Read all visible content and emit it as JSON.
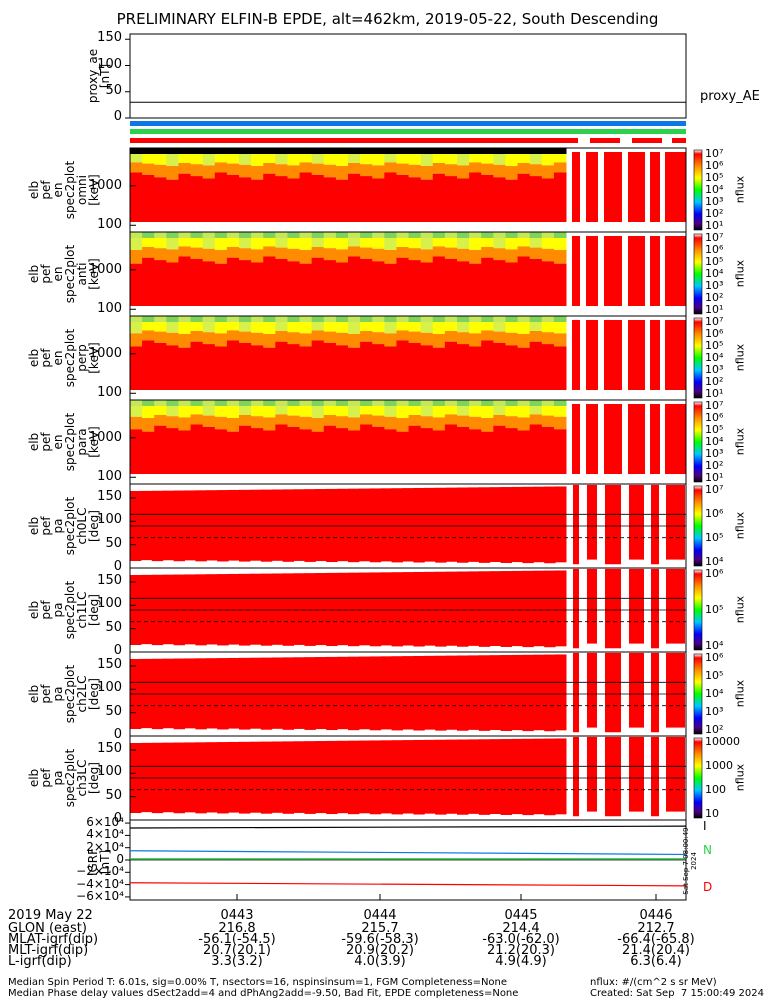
{
  "title": "PRELIMINARY ELFIN-B EPDE, alt=462km, 2019-05-22, South Descending",
  "colors": {
    "red": "#ff0000",
    "orange": "#ff8c00",
    "yellow": "#ffff00",
    "green": "#2bd14a",
    "blue": "#0a78e8",
    "black": "#000000"
  },
  "proxy_ae": {
    "ylabel_lines": [
      "proxy_ae",
      "[nT]"
    ],
    "yticks": [
      "150",
      "100",
      "50",
      "0"
    ],
    "legend": "proxy_AE",
    "ylim": [
      0,
      160
    ],
    "value": 30
  },
  "status_bars": [
    "blue",
    "green",
    "red"
  ],
  "energy_panels": [
    {
      "ylabel_lines": [
        "elb",
        "pef",
        "en",
        "spec2plot",
        "omni",
        "[keV]"
      ],
      "yticks": [
        "1000",
        "100"
      ],
      "cb_ticks": [
        "10⁷",
        "10⁶",
        "10⁵",
        "10⁴",
        "10³",
        "10²",
        "10¹"
      ],
      "cb_label": "nflux"
    },
    {
      "ylabel_lines": [
        "elb",
        "pef",
        "en",
        "spec2plot",
        "anti",
        "[keV]"
      ],
      "yticks": [
        "1000",
        "100"
      ],
      "cb_ticks": [
        "10⁷",
        "10⁶",
        "10⁵",
        "10⁴",
        "10³",
        "10²",
        "10¹"
      ],
      "cb_label": "nflux"
    },
    {
      "ylabel_lines": [
        "elb",
        "pef",
        "en",
        "spec2plot",
        "perp",
        "[keV]"
      ],
      "yticks": [
        "1000",
        "100"
      ],
      "cb_ticks": [
        "10⁷",
        "10⁶",
        "10⁵",
        "10⁴",
        "10³",
        "10²",
        "10¹"
      ],
      "cb_label": "nflux"
    },
    {
      "ylabel_lines": [
        "elb",
        "pef",
        "en",
        "spec2plot",
        "para",
        "[keV]"
      ],
      "yticks": [
        "1000",
        "100"
      ],
      "cb_ticks": [
        "10⁷",
        "10⁶",
        "10⁵",
        "10⁴",
        "10³",
        "10²",
        "10¹"
      ],
      "cb_label": "nflux"
    }
  ],
  "pa_panels": [
    {
      "ylabel_lines": [
        "elb",
        "pef",
        "pa",
        "spec2plot",
        "ch0LC",
        "[deg]"
      ],
      "yticks": [
        "150",
        "100",
        "50",
        "0"
      ],
      "cb_ticks": [
        "10⁷",
        "10⁶",
        "10⁵",
        "10⁴"
      ],
      "cb_label": "nflux"
    },
    {
      "ylabel_lines": [
        "elb",
        "pef",
        "pa",
        "spec2plot",
        "ch1LC",
        "[deg]"
      ],
      "yticks": [
        "150",
        "100",
        "50",
        "0"
      ],
      "cb_ticks": [
        "10⁶",
        "10⁵",
        "10⁴"
      ],
      "cb_label": "nflux"
    },
    {
      "ylabel_lines": [
        "elb",
        "pef",
        "pa",
        "spec2plot",
        "ch2LC",
        "[deg]"
      ],
      "yticks": [
        "150",
        "100",
        "50",
        "0"
      ],
      "cb_ticks": [
        "10⁶",
        "10⁵",
        "10⁴",
        "10³",
        "10²"
      ],
      "cb_label": "nflux"
    },
    {
      "ylabel_lines": [
        "elb",
        "pef",
        "pa",
        "spec2plot",
        "ch3LC",
        "[deg]"
      ],
      "yticks": [
        "150",
        "100",
        "50",
        "0"
      ],
      "cb_ticks": [
        "10000",
        "1000",
        "100",
        "10"
      ],
      "cb_label": "nflux"
    }
  ],
  "igrf": {
    "ylabel_lines": [
      "IGRF",
      "[nT]"
    ],
    "yticks": [
      "6×10⁴",
      "4×10⁴",
      "2×10⁴",
      "0",
      "−2×10⁴",
      "−4×10⁴",
      "−6×10⁴"
    ],
    "legend": [
      "I",
      "N",
      "D"
    ],
    "stamp": "Sat Sep  7 08:00:49 2024"
  },
  "chart_data": {
    "type": "heatmap",
    "title": "PRELIMINARY ELFIN-B EPDE, alt=462km, 2019-05-22, South Descending",
    "x_tick_labels": [
      "0443",
      "0444",
      "0445",
      "0446"
    ],
    "energy_ylim_keV": [
      60,
      7000
    ],
    "pa_ylim_deg": [
      0,
      180
    ],
    "colorbar_label": "nflux",
    "igrf_series": [
      {
        "name": "I",
        "start": 52000,
        "end": 55000
      },
      {
        "name": "N",
        "start": 15000,
        "end": 9000
      },
      {
        "name": "D",
        "start": -37000,
        "end": -42000
      }
    ]
  },
  "footer": {
    "date": "2019 May 22",
    "rows": [
      {
        "label": "GLON (east)",
        "values": [
          "216.8",
          "215.7",
          "214.4",
          "212.7"
        ]
      },
      {
        "label": "MLAT-igrf(dip)",
        "values": [
          "-56.1(-54.5)",
          "-59.6(-58.3)",
          "-63.0(-62.0)",
          "-66.4(-65.8)"
        ]
      },
      {
        "label": "MLT-igrf(dip)",
        "values": [
          "20.7(20.1)",
          "20.9(20.2)",
          "21.2(20.3)",
          "21.4(20.4)"
        ]
      },
      {
        "label": "L-igrf(dip)",
        "values": [
          "3.3(3.2)",
          "4.0(3.9)",
          "4.9(4.9)",
          "6.3(6.4)"
        ]
      }
    ],
    "note1": "Median Spin Period T: 6.01s, sig=0.00% T, nsectors=16, nspinsinsum=1, FGM Completeness=None",
    "note2": "Median Phase delay values dSect2add=4 and dPhAng2add=-9.50, Bad Fit, EPDE completeness=None",
    "units": "nflux: #/(cm^2 s sr MeV)",
    "created": "Created: Sat Sep  7 15:00:49 2024"
  }
}
